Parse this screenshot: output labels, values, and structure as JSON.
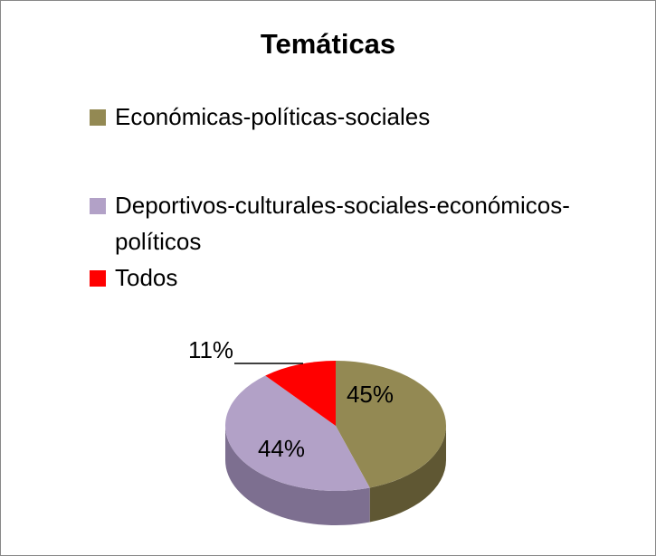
{
  "chart_data": {
    "type": "pie",
    "title": "Temáticas",
    "categories": [
      "Económicas-políticas-sociales",
      "Deportivos-culturales-sociales-económicos-políticos",
      "Todos"
    ],
    "values": [
      45,
      44,
      11
    ],
    "value_labels": [
      "45%",
      "44%",
      "11%"
    ],
    "colors": [
      "#938953",
      "#b2a1c7",
      "#ff0000"
    ]
  }
}
